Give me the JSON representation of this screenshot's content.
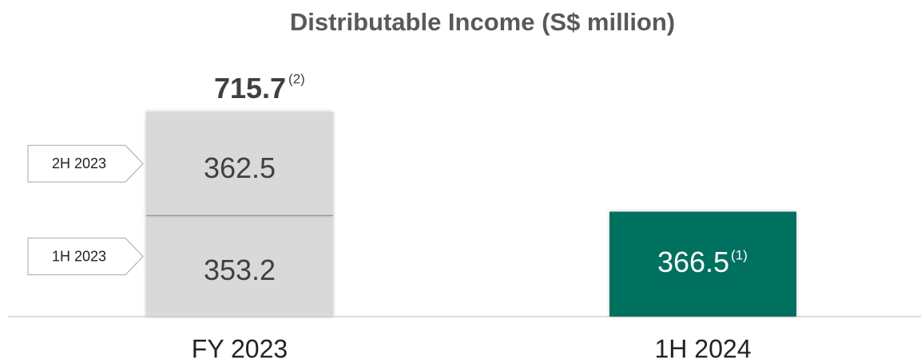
{
  "chart_data": {
    "type": "stacked_bar",
    "title": "Distributable Income (S$ million)",
    "categories": [
      "FY 2023",
      "1H 2024"
    ],
    "series": [
      {
        "name": "1H 2023",
        "color": "#d9d9d9",
        "values": [
          353.2,
          null
        ]
      },
      {
        "name": "2H 2023",
        "color": "#d9d9d9",
        "values": [
          362.5,
          null
        ]
      },
      {
        "color": "#00705f",
        "values": [
          null,
          366.5
        ],
        "notes": [
          null,
          "(1)"
        ]
      }
    ],
    "totals": [
      715.7,
      null
    ],
    "total_notes": [
      "(2)",
      null
    ],
    "ylim": [
      0,
      800
    ]
  }
}
